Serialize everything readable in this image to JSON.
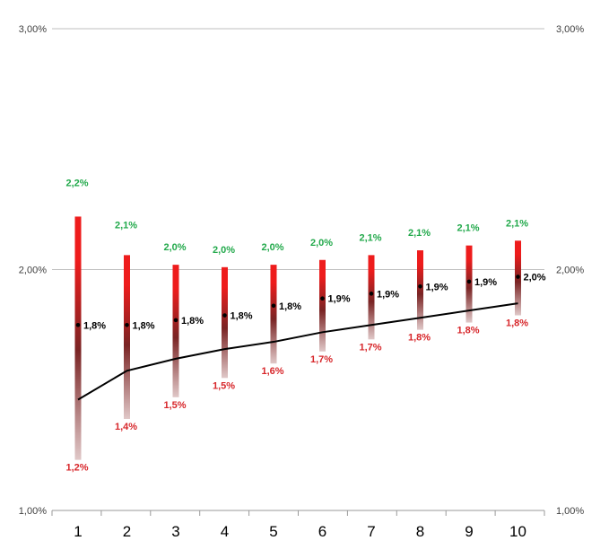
{
  "chart_data": {
    "type": "bar",
    "categories": [
      "1",
      "2",
      "3",
      "4",
      "5",
      "6",
      "7",
      "8",
      "9",
      "10"
    ],
    "ylim": [
      0.01,
      0.03
    ],
    "y_ticks": [
      {
        "value": 0.03,
        "label": "3,00%"
      },
      {
        "value": 0.02,
        "label": "2,00%"
      },
      {
        "value": 0.01,
        "label": "1,00%"
      }
    ],
    "grid": true,
    "range_bars": {
      "high": [
        0.0222,
        0.0206,
        0.0202,
        0.0201,
        0.0202,
        0.0204,
        0.0206,
        0.0208,
        0.021,
        0.0212
      ],
      "low": [
        0.0121,
        0.0138,
        0.0147,
        0.0155,
        0.0161,
        0.0166,
        0.0171,
        0.0175,
        0.0178,
        0.0181
      ],
      "high_labels": [
        "2,2%",
        "2,1%",
        "2,0%",
        "2,0%",
        "2,0%",
        "2,0%",
        "2,1%",
        "2,1%",
        "2,1%",
        "2,1%"
      ],
      "low_labels": [
        "1,2%",
        "1,4%",
        "1,5%",
        "1,5%",
        "1,6%",
        "1,7%",
        "1,7%",
        "1,8%",
        "1,8%",
        "1,8%"
      ],
      "color_high": "#ee1c1c",
      "color_low": "#e0c8c8",
      "color_mid": "#7a2424"
    },
    "mid_points": {
      "values": [
        0.0177,
        0.0177,
        0.0179,
        0.0181,
        0.0185,
        0.0188,
        0.019,
        0.0193,
        0.0195,
        0.0197
      ],
      "labels": [
        "1,8%",
        "1,8%",
        "1,8%",
        "1,8%",
        "1,8%",
        "1,9%",
        "1,9%",
        "1,9%",
        "1,9%",
        "2,0%"
      ]
    },
    "line": {
      "values": [
        0.0146,
        0.0158,
        0.0163,
        0.0167,
        0.017,
        0.0174,
        0.0177,
        0.018,
        0.0183,
        0.0186
      ],
      "color": "#000000"
    },
    "label_colors": {
      "high": "#22a94b",
      "low": "#d7262a",
      "mid": "#000000"
    }
  }
}
